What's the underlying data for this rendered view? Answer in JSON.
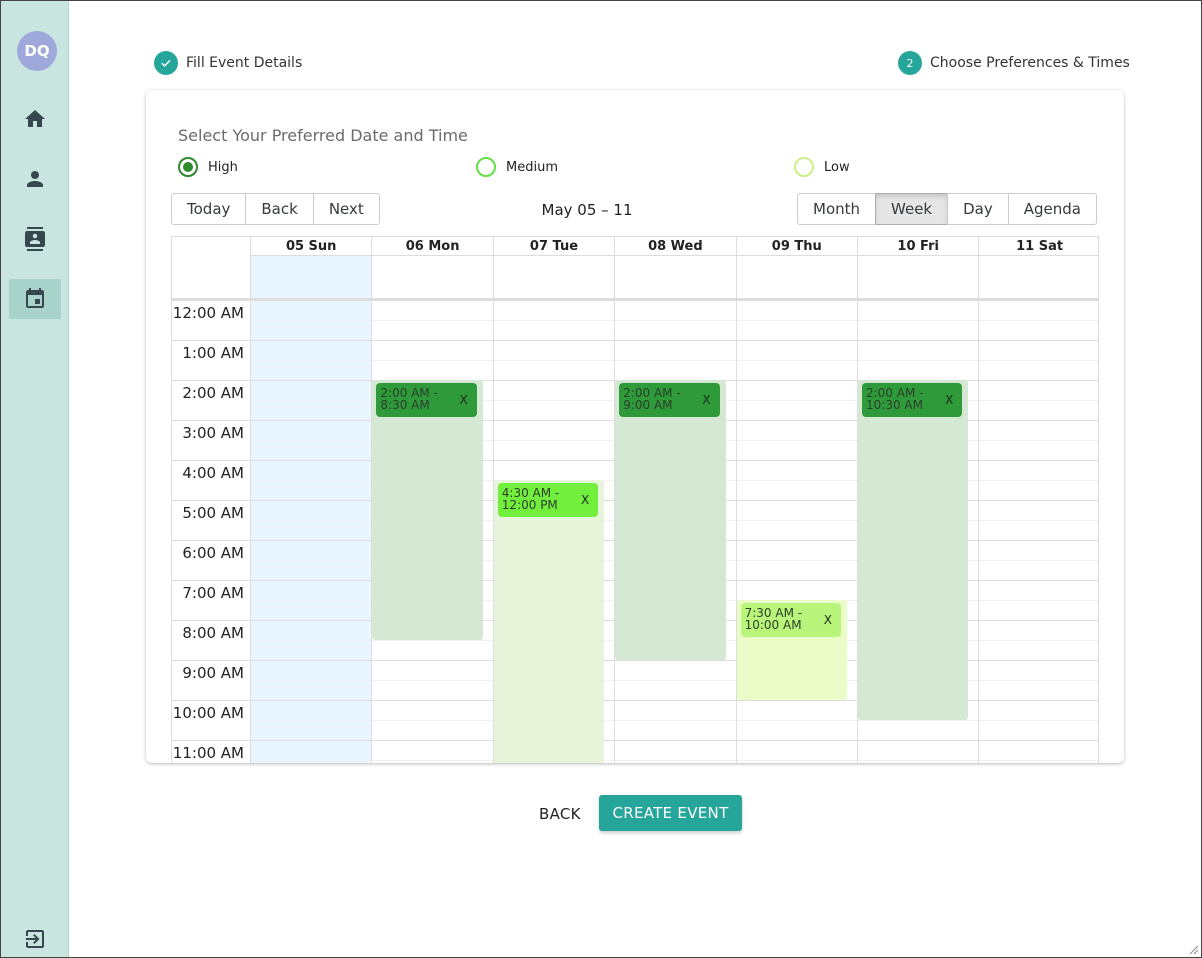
{
  "sidebar": {
    "avatar_initials": "DQ",
    "items": [
      {
        "icon": "home-icon"
      },
      {
        "icon": "person-icon"
      },
      {
        "icon": "contacts-icon"
      },
      {
        "icon": "calendar-icon",
        "active": true
      }
    ],
    "logout_icon": "logout-icon"
  },
  "stepper": {
    "step1_label": "Fill Event Details",
    "step2_number": "2",
    "step2_label": "Choose Preferences & Times"
  },
  "card": {
    "title": "Select Your Preferred Date and Time",
    "priorities": [
      {
        "label": "High",
        "color": "#2e8b2e",
        "selected": true
      },
      {
        "label": "Medium",
        "color": "#66dd44",
        "selected": false
      },
      {
        "label": "Low",
        "color": "#ccf088",
        "selected": false
      }
    ]
  },
  "toolbar": {
    "nav": [
      "Today",
      "Back",
      "Next"
    ],
    "range_label": "May 05 – 11",
    "views": [
      "Month",
      "Week",
      "Day",
      "Agenda"
    ],
    "active_view": "Week"
  },
  "calendar": {
    "days": [
      "05 Sun",
      "06 Mon",
      "07 Tue",
      "08 Wed",
      "09 Thu",
      "10 Fri",
      "11 Sat"
    ],
    "today_index": 0,
    "hours": [
      "12:00 AM",
      "1:00 AM",
      "2:00 AM",
      "3:00 AM",
      "4:00 AM",
      "5:00 AM",
      "6:00 AM",
      "7:00 AM",
      "8:00 AM",
      "9:00 AM",
      "10:00 AM",
      "11:00 AM"
    ],
    "availability": [
      {
        "day": 1,
        "start": 2.0,
        "end": 8.5,
        "color": "#d5e8d4"
      },
      {
        "day": 2,
        "start": 4.5,
        "end": 12.0,
        "color": "#e8f4d9"
      },
      {
        "day": 3,
        "start": 2.0,
        "end": 9.0,
        "color": "#d5e8d4"
      },
      {
        "day": 4,
        "start": 7.5,
        "end": 10.0,
        "color": "#ebfcc8"
      },
      {
        "day": 5,
        "start": 2.0,
        "end": 10.5,
        "color": "#d5e8d4"
      }
    ],
    "events": [
      {
        "day": 1,
        "start": 2.0,
        "line1": "2:00 AM -",
        "line2": "8:30 AM",
        "color": "#2e9a3a",
        "close": "X"
      },
      {
        "day": 2,
        "start": 4.5,
        "line1": "4:30 AM -",
        "line2": "12:00 PM",
        "color": "#72ef3c",
        "close": "X"
      },
      {
        "day": 3,
        "start": 2.0,
        "line1": "2:00 AM -",
        "line2": "9:00 AM",
        "color": "#2e9a3a",
        "close": "X"
      },
      {
        "day": 4,
        "start": 7.5,
        "line1": "7:30 AM -",
        "line2": "10:00 AM",
        "color": "#b9f57a",
        "close": "X"
      },
      {
        "day": 5,
        "start": 2.0,
        "line1": "2:00 AM -",
        "line2": "10:30 AM",
        "color": "#2e9a3a",
        "close": "X"
      }
    ]
  },
  "footer": {
    "back_label": "BACK",
    "create_label": "CREATE EVENT"
  }
}
